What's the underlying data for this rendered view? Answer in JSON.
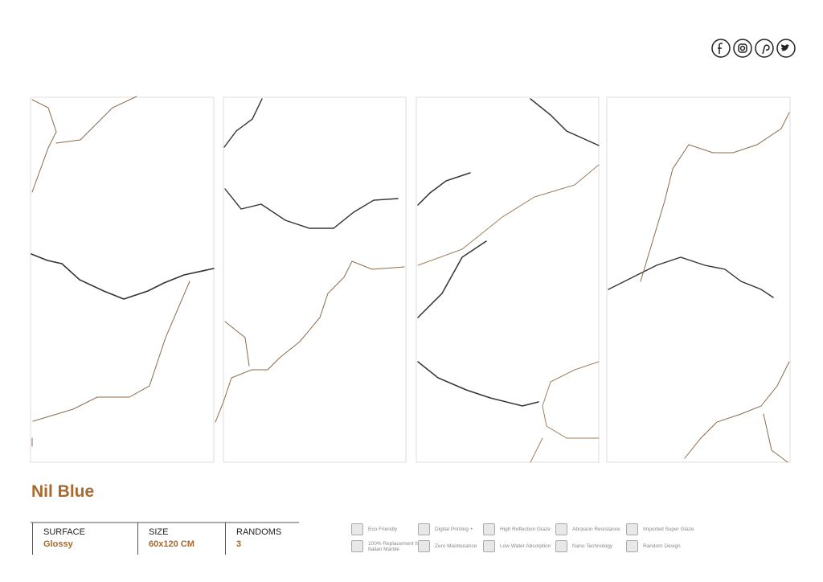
{
  "product": {
    "name": "Nil Blue"
  },
  "specs": [
    {
      "label": "SURFACE",
      "value": "Glossy"
    },
    {
      "label": "SIZE",
      "value": "60x120 CM"
    },
    {
      "label": "RANDOMS",
      "value": "3"
    }
  ],
  "features": [
    "Eco Friendly",
    "Digital Printing +",
    "High Reflection Glaze",
    "Abrasion Resistance",
    "Imported Super Glaze",
    "100% Replacement for Italian Marble",
    "Zero Maintenance",
    "Low Water Absorption",
    "Nano Technology",
    "Random Design"
  ]
}
